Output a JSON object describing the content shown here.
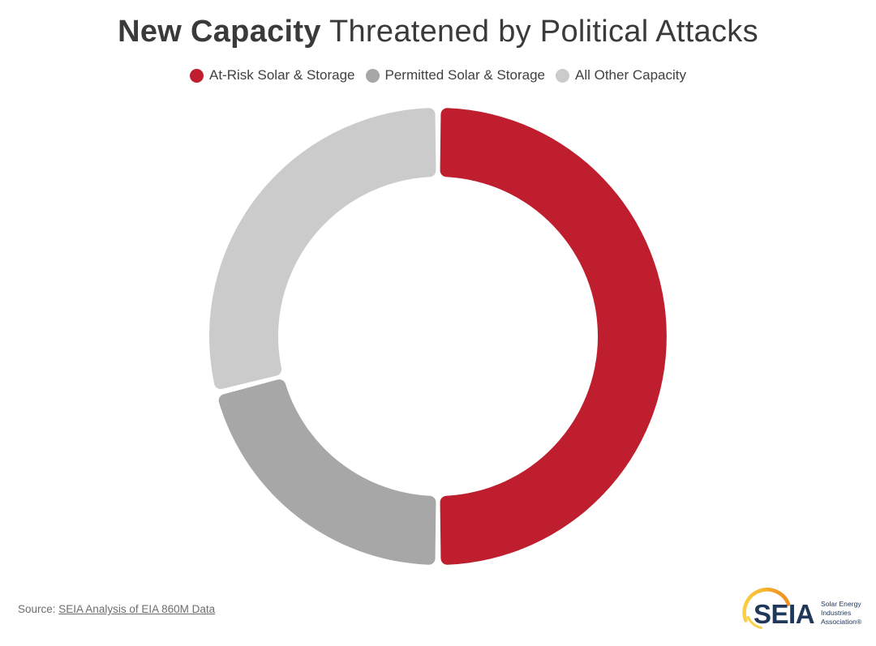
{
  "title": {
    "bold": "New Capacity",
    "rest": " Threatened by Political Attacks"
  },
  "legend": {
    "items": [
      {
        "label": "At-Risk Solar & Storage",
        "color": "#be1e2d"
      },
      {
        "label": "Permitted Solar & Storage",
        "color": "#a7a7a7"
      },
      {
        "label": "All Other Capacity",
        "color": "#cbcbcb"
      }
    ]
  },
  "chart_data": {
    "type": "pie",
    "subtype": "donut",
    "title": "New Capacity Threatened by Political Attacks",
    "categories": [
      "At-Risk Solar & Storage",
      "Permitted Solar & Storage",
      "All Other Capacity"
    ],
    "values": [
      50,
      21,
      29
    ],
    "unit": "percent share of new capacity (estimated from arc angles)",
    "colors": [
      "#be1e2d",
      "#a7a7a7",
      "#cbcbcb"
    ],
    "start_angle_deg": 0,
    "direction": "clockwise",
    "inner_radius_ratio": 0.7,
    "corner_radius_px": 8,
    "pad_angle_rad": 0.025,
    "legend_position": "top",
    "data_labels": false,
    "center_label": ""
  },
  "footer": {
    "source_prefix": "Source: ",
    "source_link": "SEIA Analysis of EIA 860M Data"
  },
  "logo": {
    "acronym": "SEIA",
    "name_line1": "Solar Energy",
    "name_line2": "Industries",
    "name_line3": "Association®",
    "navy": "#20395b",
    "gold": "#f8cf47",
    "orange": "#ee8a22"
  },
  "colors": {
    "background": "#ffffff",
    "title_text": "#3a3a3a",
    "legend_text": "#414141",
    "source_text": "#6e6e6e"
  }
}
